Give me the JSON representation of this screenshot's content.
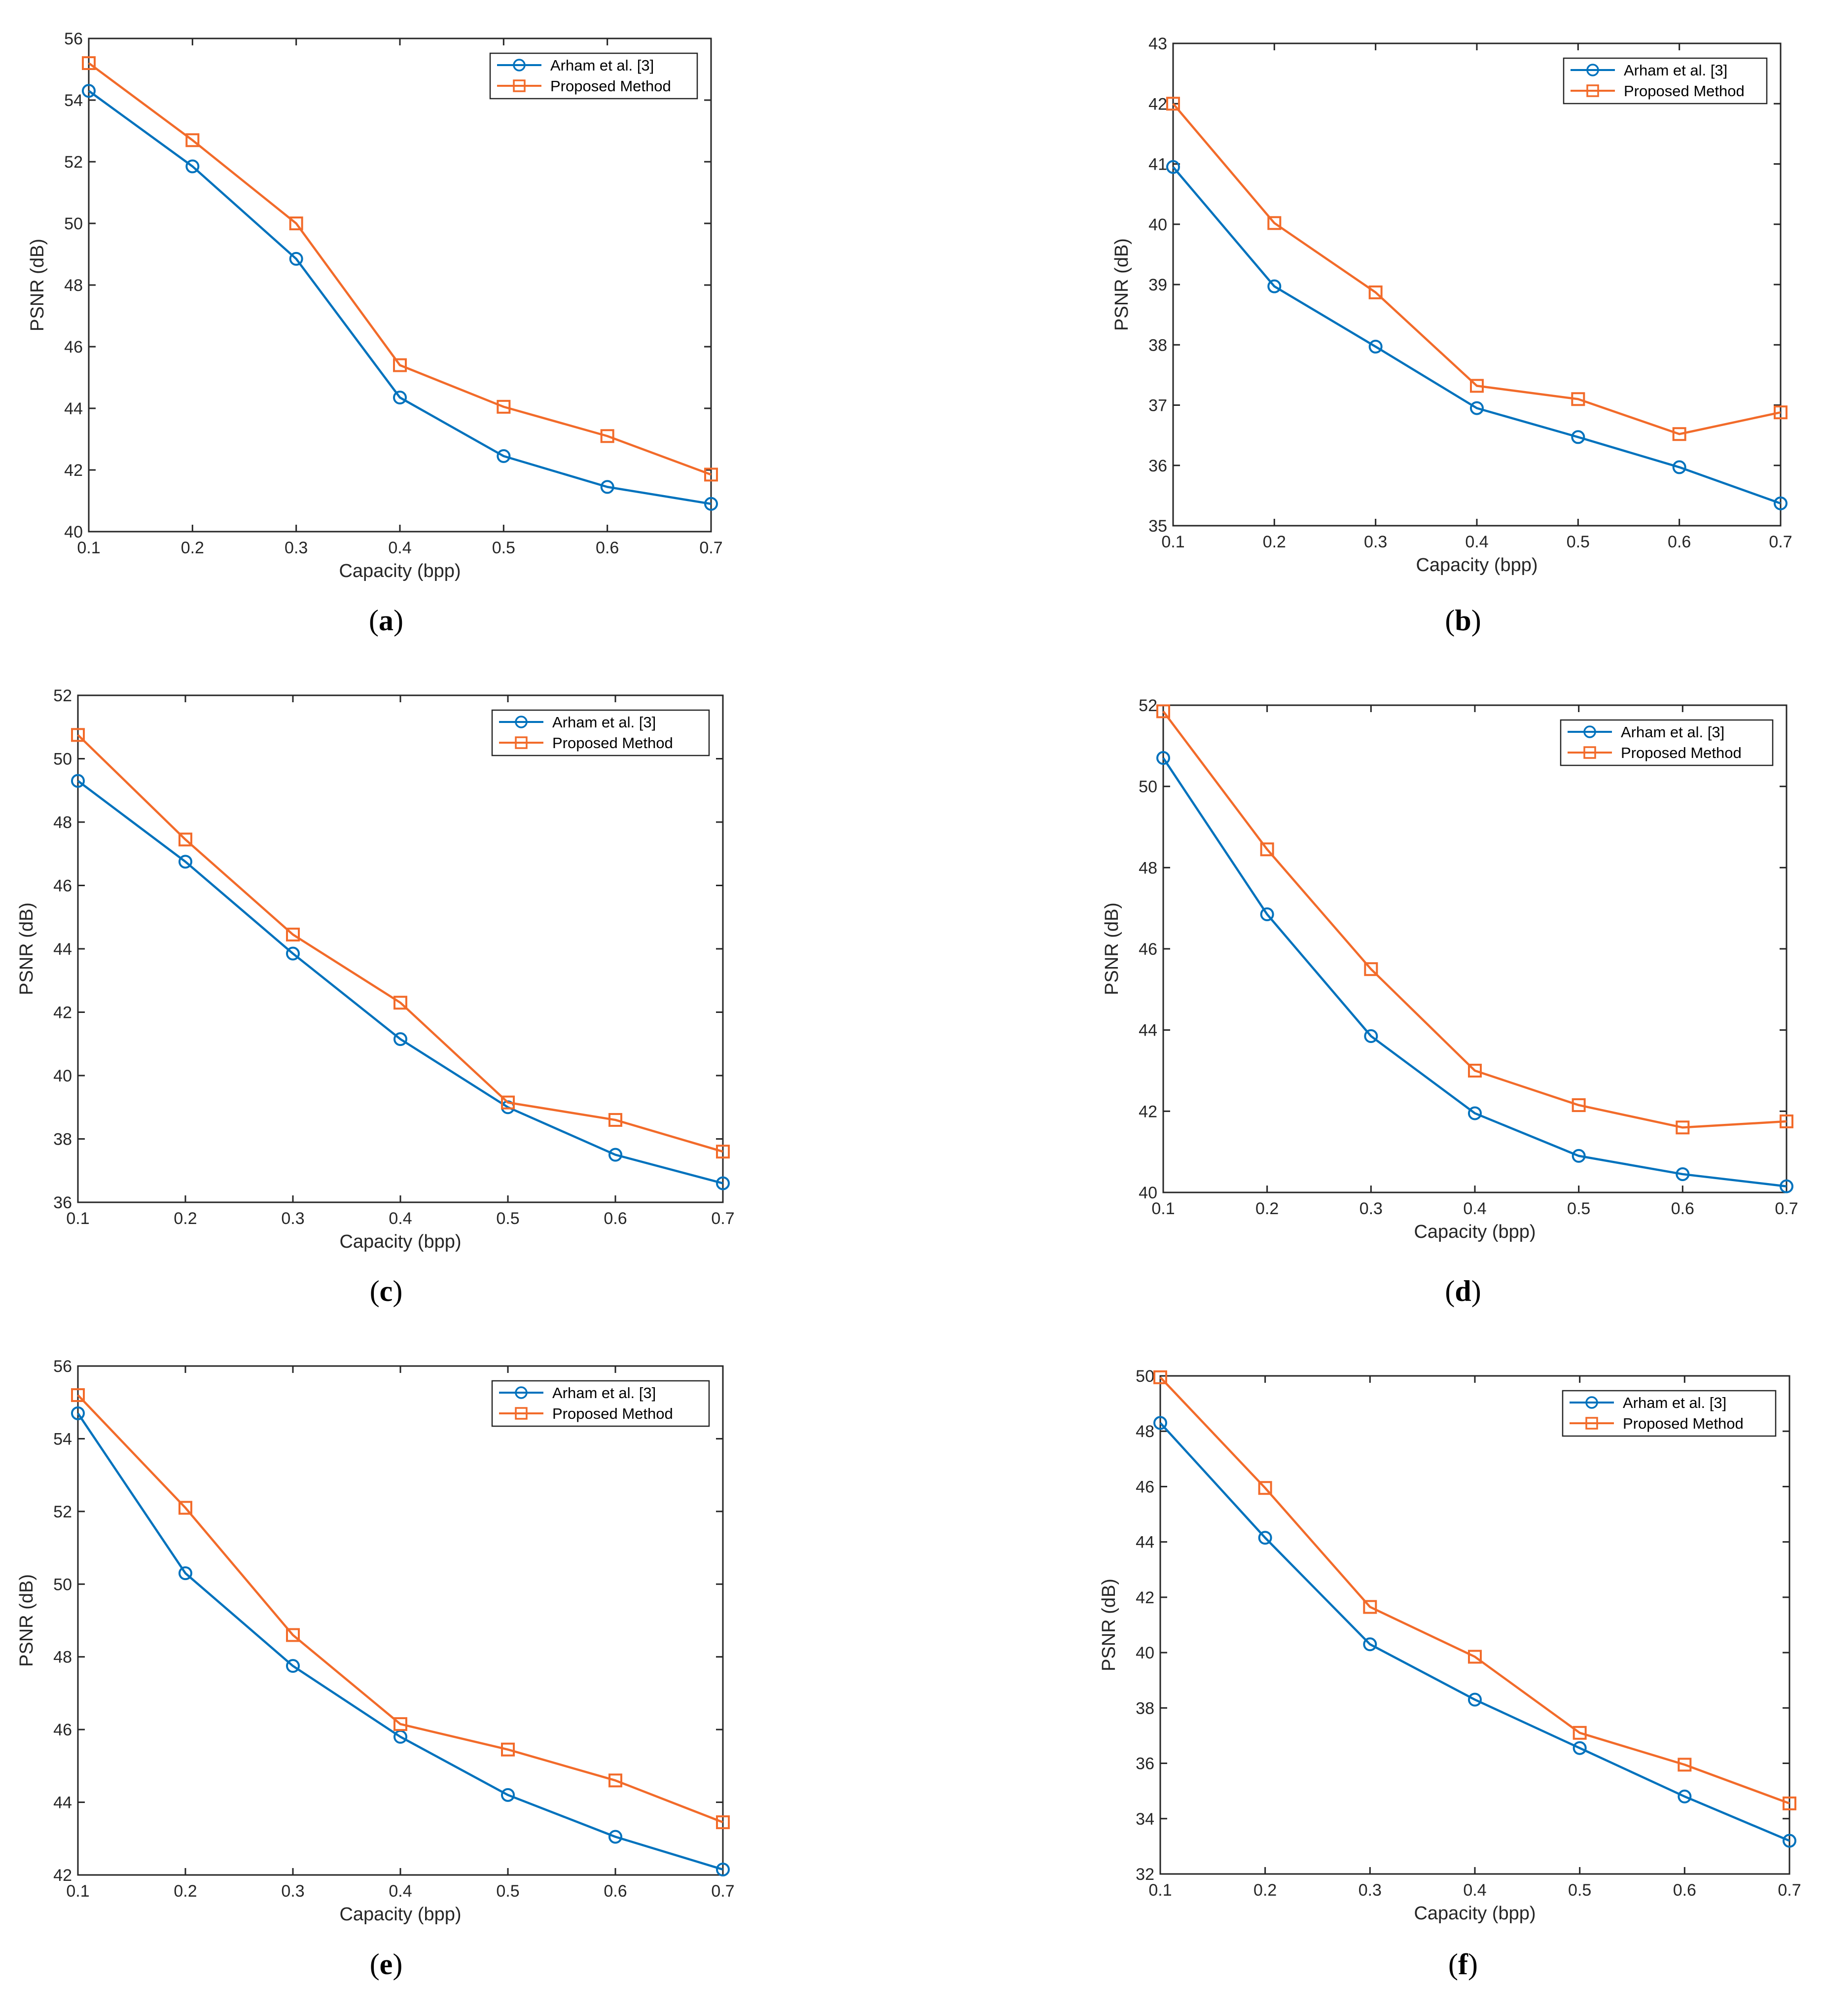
{
  "figure": {
    "colors": {
      "series_1": "#0072BD",
      "series_2": "#F26B2A",
      "axis": "#262626"
    },
    "marker_icons": [
      "circle-marker-icon",
      "square-marker-icon"
    ]
  },
  "chart_data": [
    {
      "panel": "a",
      "caption_letter": "a",
      "type": "line",
      "xlabel": "Capacity (bpp)",
      "ylabel": "PSNR (dB)",
      "xlim": [
        0.1,
        0.7
      ],
      "ylim": [
        40,
        56
      ],
      "xticks": [
        "0.1",
        "0.2",
        "0.3",
        "0.4",
        "0.5",
        "0.6",
        "0.7"
      ],
      "yticks": [
        "40",
        "42",
        "44",
        "46",
        "48",
        "50",
        "52",
        "54",
        "56"
      ],
      "x": [
        0.1,
        0.2,
        0.3,
        0.4,
        0.5,
        0.6,
        0.7
      ],
      "legend": "top-right",
      "series": [
        {
          "name": "Arham et al. [3]",
          "values": [
            54.3,
            51.85,
            48.85,
            44.35,
            42.45,
            41.45,
            40.9
          ]
        },
        {
          "name": "Proposed Method",
          "values": [
            55.2,
            52.7,
            50.0,
            45.4,
            44.05,
            43.1,
            41.85
          ]
        }
      ]
    },
    {
      "panel": "b",
      "caption_letter": "b",
      "type": "line",
      "xlabel": "Capacity (bpp)",
      "ylabel": "PSNR (dB)",
      "xlim": [
        0.1,
        0.7
      ],
      "ylim": [
        35,
        43
      ],
      "xticks": [
        "0.1",
        "0.2",
        "0.3",
        "0.4",
        "0.5",
        "0.6",
        "0.7"
      ],
      "yticks": [
        "35",
        "36",
        "37",
        "38",
        "39",
        "40",
        "41",
        "42",
        "43"
      ],
      "x": [
        0.1,
        0.2,
        0.3,
        0.4,
        0.5,
        0.6,
        0.7
      ],
      "legend": "top-right",
      "series": [
        {
          "name": "Arham et al. [3]",
          "values": [
            40.95,
            38.97,
            37.97,
            36.95,
            36.47,
            35.97,
            35.37
          ]
        },
        {
          "name": "Proposed Method",
          "values": [
            42.0,
            40.02,
            38.87,
            37.32,
            37.1,
            36.52,
            36.88
          ]
        }
      ]
    },
    {
      "panel": "c",
      "caption_letter": "c",
      "type": "line",
      "xlabel": "Capacity (bpp)",
      "ylabel": "PSNR (dB)",
      "xlim": [
        0.1,
        0.7
      ],
      "ylim": [
        36,
        52
      ],
      "xticks": [
        "0.1",
        "0.2",
        "0.3",
        "0.4",
        "0.5",
        "0.6",
        "0.7"
      ],
      "yticks": [
        "36",
        "38",
        "40",
        "42",
        "44",
        "46",
        "48",
        "50",
        "52"
      ],
      "x": [
        0.1,
        0.2,
        0.3,
        0.4,
        0.5,
        0.6,
        0.7
      ],
      "legend": "top-right",
      "series": [
        {
          "name": "Arham et al. [3]",
          "values": [
            49.3,
            46.75,
            43.85,
            41.15,
            39.0,
            37.5,
            36.6
          ]
        },
        {
          "name": "Proposed Method",
          "values": [
            50.75,
            47.45,
            44.45,
            42.3,
            39.15,
            38.6,
            37.6
          ]
        }
      ]
    },
    {
      "panel": "d",
      "caption_letter": "d",
      "type": "line",
      "xlabel": "Capacity (bpp)",
      "ylabel": "PSNR (dB)",
      "xlim": [
        0.1,
        0.7
      ],
      "ylim": [
        40,
        52
      ],
      "xticks": [
        "0.1",
        "0.2",
        "0.3",
        "0.4",
        "0.5",
        "0.6",
        "0.7"
      ],
      "yticks": [
        "40",
        "42",
        "44",
        "46",
        "48",
        "50",
        "52"
      ],
      "x": [
        0.1,
        0.2,
        0.3,
        0.4,
        0.5,
        0.6,
        0.7
      ],
      "legend": "top-right",
      "series": [
        {
          "name": "Arham et al. [3]",
          "values": [
            50.7,
            46.85,
            43.85,
            41.95,
            40.9,
            40.45,
            40.15
          ]
        },
        {
          "name": "Proposed Method",
          "values": [
            51.85,
            48.45,
            45.5,
            43.0,
            42.15,
            41.6,
            41.75
          ]
        }
      ]
    },
    {
      "panel": "e",
      "caption_letter": "e",
      "type": "line",
      "xlabel": "Capacity (bpp)",
      "ylabel": "PSNR (dB)",
      "xlim": [
        0.1,
        0.7
      ],
      "ylim": [
        42,
        56
      ],
      "xticks": [
        "0.1",
        "0.2",
        "0.3",
        "0.4",
        "0.5",
        "0.6",
        "0.7"
      ],
      "yticks": [
        "42",
        "44",
        "46",
        "48",
        "50",
        "52",
        "54",
        "56"
      ],
      "x": [
        0.1,
        0.2,
        0.3,
        0.4,
        0.5,
        0.6,
        0.7
      ],
      "legend": "top-right",
      "series": [
        {
          "name": "Arham et al. [3]",
          "values": [
            54.7,
            50.3,
            47.75,
            45.8,
            44.2,
            43.05,
            42.15
          ]
        },
        {
          "name": "Proposed Method",
          "values": [
            55.2,
            52.1,
            48.6,
            46.15,
            45.45,
            44.6,
            43.45
          ]
        }
      ]
    },
    {
      "panel": "f",
      "caption_letter": "f",
      "type": "line",
      "xlabel": "Capacity (bpp)",
      "ylabel": "PSNR (dB)",
      "xlim": [
        0.1,
        0.7
      ],
      "ylim": [
        32,
        50
      ],
      "xticks": [
        "0.1",
        "0.2",
        "0.3",
        "0.4",
        "0.5",
        "0.6",
        "0.7"
      ],
      "yticks": [
        "32",
        "34",
        "36",
        "38",
        "40",
        "42",
        "44",
        "46",
        "48",
        "50"
      ],
      "x": [
        0.1,
        0.2,
        0.3,
        0.4,
        0.5,
        0.6,
        0.7
      ],
      "legend": "top-right",
      "series": [
        {
          "name": "Arham et al. [3]",
          "values": [
            48.3,
            44.15,
            40.3,
            38.3,
            36.55,
            34.8,
            33.2
          ]
        },
        {
          "name": "Proposed Method",
          "values": [
            49.95,
            45.95,
            41.65,
            39.85,
            37.1,
            35.95,
            34.55
          ]
        }
      ]
    }
  ]
}
